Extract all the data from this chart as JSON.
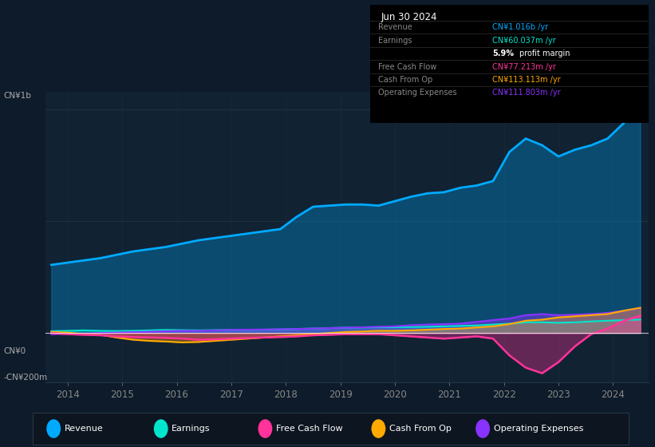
{
  "bg_color": "#0d1b2a",
  "plot_bg_color": "#112233",
  "title": "Jun 30 2024",
  "ylabel_top": "CN¥1b",
  "ylabel_zero": "CN¥0",
  "ylabel_bottom": "-CN¥200m",
  "x_years": [
    2013.7,
    2014.0,
    2014.3,
    2014.6,
    2014.9,
    2015.2,
    2015.5,
    2015.8,
    2016.1,
    2016.4,
    2016.7,
    2017.0,
    2017.3,
    2017.6,
    2017.9,
    2018.2,
    2018.5,
    2018.8,
    2019.1,
    2019.4,
    2019.7,
    2020.0,
    2020.3,
    2020.6,
    2020.9,
    2021.2,
    2021.5,
    2021.8,
    2022.1,
    2022.4,
    2022.7,
    2023.0,
    2023.3,
    2023.6,
    2023.9,
    2024.2,
    2024.5
  ],
  "revenue": [
    0.305,
    0.315,
    0.325,
    0.335,
    0.35,
    0.365,
    0.375,
    0.385,
    0.4,
    0.415,
    0.425,
    0.435,
    0.445,
    0.455,
    0.465,
    0.52,
    0.565,
    0.57,
    0.575,
    0.575,
    0.57,
    0.59,
    0.61,
    0.625,
    0.63,
    0.65,
    0.66,
    0.68,
    0.81,
    0.87,
    0.84,
    0.79,
    0.82,
    0.84,
    0.87,
    0.94,
    1.016
  ],
  "earnings": [
    0.008,
    0.01,
    0.012,
    0.01,
    0.009,
    0.01,
    0.012,
    0.014,
    0.013,
    0.012,
    0.013,
    0.014,
    0.014,
    0.015,
    0.016,
    0.018,
    0.02,
    0.022,
    0.024,
    0.025,
    0.026,
    0.026,
    0.027,
    0.028,
    0.03,
    0.032,
    0.034,
    0.038,
    0.042,
    0.048,
    0.048,
    0.046,
    0.048,
    0.052,
    0.055,
    0.058,
    0.06
  ],
  "fcf": [
    0.0,
    -0.005,
    -0.008,
    -0.01,
    -0.015,
    -0.018,
    -0.02,
    -0.022,
    -0.025,
    -0.03,
    -0.028,
    -0.025,
    -0.022,
    -0.02,
    -0.018,
    -0.015,
    -0.01,
    -0.008,
    -0.005,
    -0.005,
    -0.005,
    -0.01,
    -0.015,
    -0.02,
    -0.025,
    -0.02,
    -0.015,
    -0.025,
    -0.1,
    -0.155,
    -0.18,
    -0.13,
    -0.06,
    -0.005,
    0.02,
    0.055,
    0.077
  ],
  "cash_op": [
    0.005,
    0.002,
    -0.005,
    -0.008,
    -0.02,
    -0.03,
    -0.035,
    -0.038,
    -0.042,
    -0.04,
    -0.035,
    -0.03,
    -0.025,
    -0.02,
    -0.015,
    -0.01,
    -0.005,
    0.0,
    0.005,
    0.007,
    0.01,
    0.01,
    0.012,
    0.015,
    0.018,
    0.02,
    0.025,
    0.03,
    0.04,
    0.055,
    0.06,
    0.07,
    0.075,
    0.08,
    0.085,
    0.1,
    0.113
  ],
  "op_exp": [
    -0.005,
    -0.003,
    -0.002,
    0.0,
    0.002,
    0.004,
    0.006,
    0.008,
    0.01,
    0.01,
    0.012,
    0.014,
    0.015,
    0.016,
    0.017,
    0.018,
    0.02,
    0.022,
    0.024,
    0.026,
    0.028,
    0.03,
    0.035,
    0.038,
    0.04,
    0.042,
    0.05,
    0.058,
    0.065,
    0.08,
    0.085,
    0.08,
    0.082,
    0.085,
    0.09,
    0.1,
    0.112
  ],
  "revenue_color": "#00aaff",
  "earnings_color": "#00e5cc",
  "fcf_color": "#ff3399",
  "cash_op_color": "#ffaa00",
  "op_exp_color": "#8833ff",
  "legend_items": [
    {
      "label": "Revenue",
      "color": "#00aaff"
    },
    {
      "label": "Earnings",
      "color": "#00e5cc"
    },
    {
      "label": "Free Cash Flow",
      "color": "#ff3399"
    },
    {
      "label": "Cash From Op",
      "color": "#ffaa00"
    },
    {
      "label": "Operating Expenses",
      "color": "#8833ff"
    }
  ],
  "info_rows": [
    {
      "label": "Revenue",
      "value": "CN¥1.016b /yr",
      "value_color": "#00aaff"
    },
    {
      "label": "Earnings",
      "value": "CN¥60.037m /yr",
      "value_color": "#00e5cc"
    },
    {
      "label": "",
      "value": "5.9% profit margin",
      "value_color": "#ffffff"
    },
    {
      "label": "Free Cash Flow",
      "value": "CN¥77.213m /yr",
      "value_color": "#ff3399"
    },
    {
      "label": "Cash From Op",
      "value": "CN¥113.113m /yr",
      "value_color": "#ffaa00"
    },
    {
      "label": "Operating Expenses",
      "value": "CN¥111.803m /yr",
      "value_color": "#8833ff"
    }
  ]
}
